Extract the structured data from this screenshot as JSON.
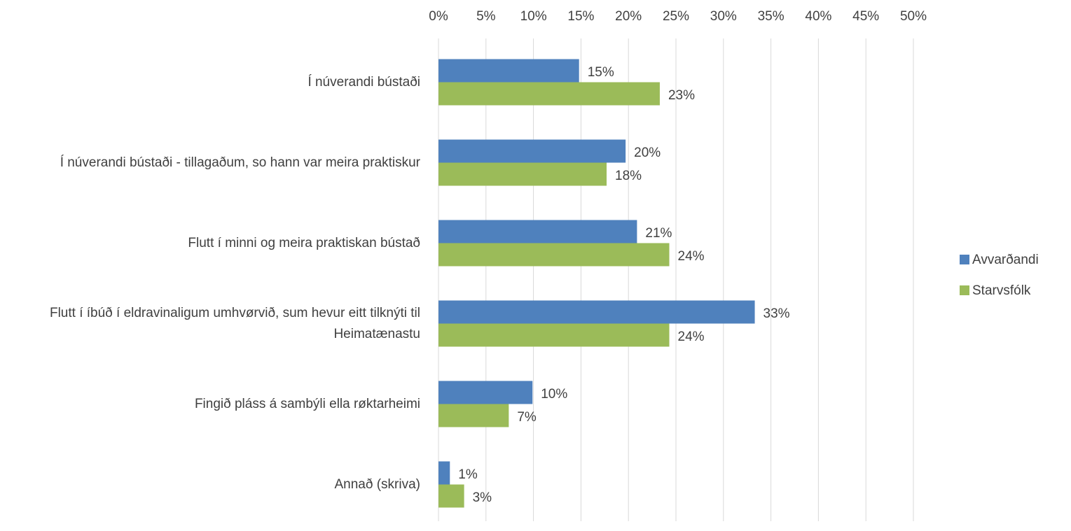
{
  "chart_data": {
    "type": "bar",
    "orientation": "horizontal",
    "categories": [
      "Í núverandi bústaði",
      "Í núverandi bústaði - tillagaðum, so hann var meira praktiskur",
      "Flutt í minni og meira praktiskan bústað",
      "Flutt í íbúð í eldravinaligum umhvørvið, sum hevur eitt tilknýti til Heimatænastu",
      "Fingið pláss á sambýli ella røktarheimi",
      "Annað (skriva)"
    ],
    "series": [
      {
        "name": "Avvarðandi",
        "color": "#4f81bd",
        "values": [
          14.8,
          19.7,
          20.9,
          33.3,
          9.9,
          1.2
        ],
        "value_labels": [
          "15%",
          "20%",
          "21%",
          "33%",
          "10%",
          "1%"
        ]
      },
      {
        "name": "Starvsfólk",
        "color": "#9bbb59",
        "values": [
          23.3,
          17.7,
          24.3,
          24.3,
          7.4,
          2.7
        ],
        "value_labels": [
          "23%",
          "18%",
          "24%",
          "24%",
          "7%",
          "3%"
        ]
      }
    ],
    "xlim": [
      0,
      50
    ],
    "xticks": [
      {
        "value": 0,
        "label": "0%"
      },
      {
        "value": 5,
        "label": "5%"
      },
      {
        "value": 10,
        "label": "10%"
      },
      {
        "value": 15,
        "label": "15%"
      },
      {
        "value": 20,
        "label": "20%"
      },
      {
        "value": 25,
        "label": "25%"
      },
      {
        "value": 30,
        "label": "30%"
      },
      {
        "value": 35,
        "label": "35%"
      },
      {
        "value": 40,
        "label": "40%"
      },
      {
        "value": 45,
        "label": "45%"
      },
      {
        "value": 50,
        "label": "50%"
      }
    ],
    "grid": true,
    "legend": "right"
  }
}
